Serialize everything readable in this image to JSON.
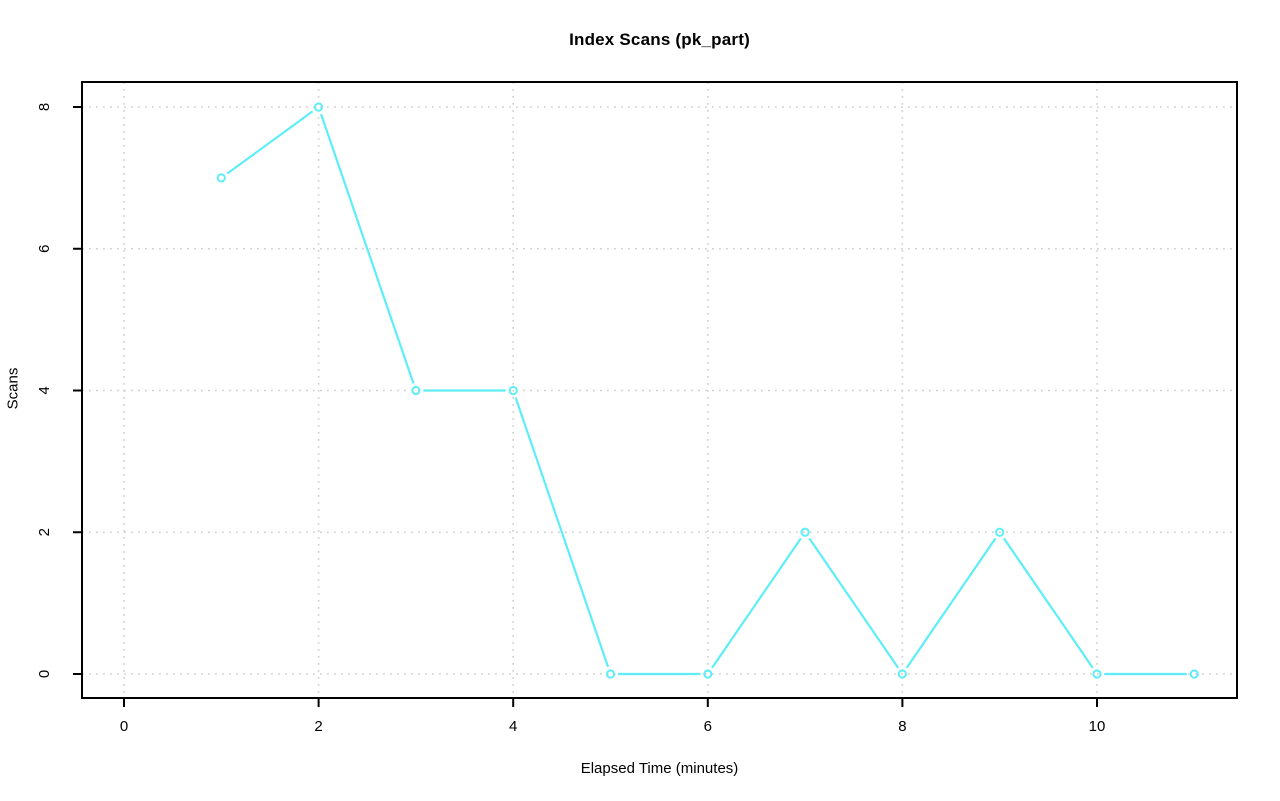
{
  "chart_data": {
    "type": "line",
    "title": "Index Scans (pk_part)",
    "xlabel": "Elapsed Time (minutes)",
    "ylabel": "Scans",
    "x": [
      1,
      2,
      3,
      4,
      5,
      6,
      7,
      8,
      9,
      10,
      11
    ],
    "y": [
      7,
      8,
      4,
      4,
      0,
      0,
      2,
      0,
      2,
      0,
      0
    ],
    "xlim": [
      0,
      11
    ],
    "ylim": [
      0,
      8
    ],
    "xticks": [
      0,
      2,
      4,
      6,
      8,
      10
    ],
    "yticks": [
      0,
      2,
      4,
      6,
      8
    ],
    "grid": true,
    "grid_style": "dotted",
    "legend_position": "none",
    "marker": "open-circle",
    "line_color_name": "cyan",
    "line_color": "#5DEEF8",
    "grid_color": "#CFCFCF",
    "axis_color": "#000000",
    "background_color": "#FFFFFF"
  }
}
